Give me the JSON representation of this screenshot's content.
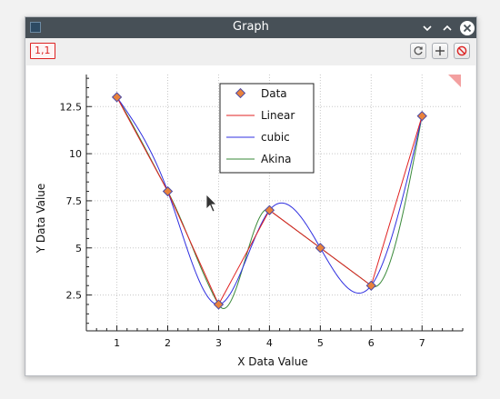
{
  "window": {
    "title": "Graph"
  },
  "toolbar": {
    "cell_label": "1,1",
    "refresh_icon": "refresh-icon",
    "add_icon": "plus-icon",
    "clear_icon": "no-entry-icon"
  },
  "colors": {
    "titlebar": "#475057",
    "data_marker_fill": "#e9823c",
    "data_marker_stroke": "#4a4aa8",
    "linear": "#e02020",
    "cubic": "#3030e0",
    "akima": "#3a8a3a"
  },
  "chart_data": {
    "type": "line",
    "xlabel": "X Data Value",
    "ylabel": "Y Data Value",
    "xlim": [
      0.4,
      7.8
    ],
    "ylim": [
      0.6,
      14.2
    ],
    "xticks": [
      "1",
      "2",
      "3",
      "4",
      "5",
      "6",
      "7"
    ],
    "yticks": [
      "2.5",
      "5",
      "7.5",
      "10",
      "12.5"
    ],
    "ytick_values": [
      2.5,
      5,
      7.5,
      10,
      12.5
    ],
    "x": [
      1,
      2,
      3,
      4,
      5,
      6,
      7
    ],
    "y": [
      13,
      8,
      2,
      7,
      5,
      3,
      12
    ],
    "grid": true,
    "legend_position": "top-center",
    "series": [
      {
        "name": "Data",
        "kind": "markers",
        "x": [
          1,
          2,
          3,
          4,
          5,
          6,
          7
        ],
        "y": [
          13,
          8,
          2,
          7,
          5,
          3,
          12
        ]
      },
      {
        "name": "Linear",
        "kind": "linear"
      },
      {
        "name": "cubic",
        "kind": "cubic"
      },
      {
        "name": "Akina",
        "kind": "akima"
      }
    ]
  }
}
